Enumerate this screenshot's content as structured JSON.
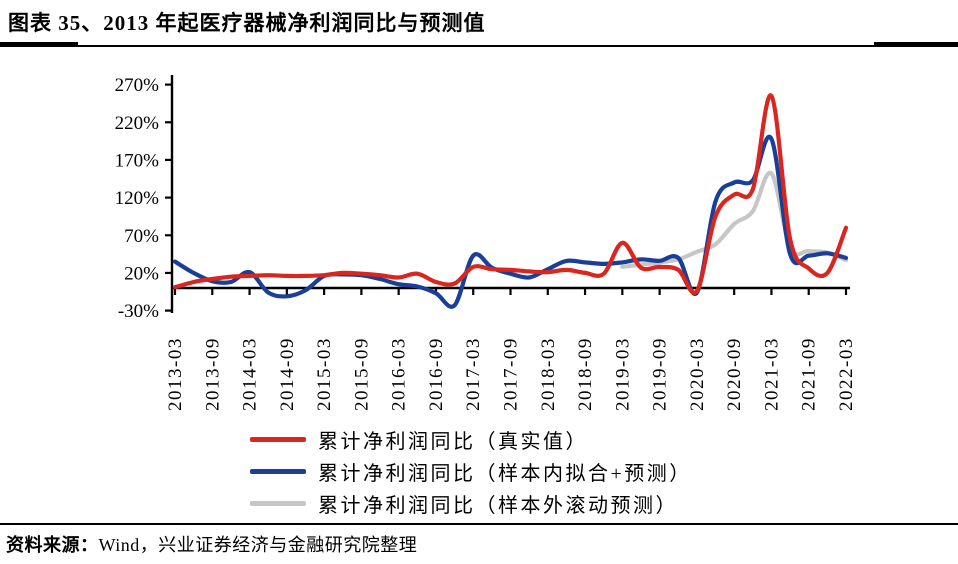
{
  "header": {
    "title": "图表 35、2013 年起医疗器械净利润同比与预测值"
  },
  "footer": {
    "source_label": "资料来源：",
    "source_text": "Wind，兴业证券经济与金融研究院整理"
  },
  "chart_data": {
    "type": "line",
    "title": "图表 35、2013 年起医疗器械净利润同比与预测值",
    "xlabel": "",
    "ylabel": "",
    "y_unit": "%",
    "ylim": [
      -30,
      270
    ],
    "yticks": [
      270,
      220,
      170,
      120,
      70,
      20,
      -30
    ],
    "grid": false,
    "legend_position": "bottom",
    "axis_color": "#000000",
    "x_tick_labels": [
      "2013-03",
      "2013-09",
      "2014-03",
      "2014-09",
      "2015-03",
      "2015-09",
      "2016-03",
      "2016-09",
      "2017-03",
      "2017-09",
      "2018-03",
      "2018-09",
      "2019-03",
      "2019-09",
      "2020-03",
      "2020-09",
      "2021-03",
      "2021-09",
      "2022-03"
    ],
    "x": [
      "2013-03",
      "2013-06",
      "2013-09",
      "2013-12",
      "2014-03",
      "2014-06",
      "2014-09",
      "2014-12",
      "2015-03",
      "2015-06",
      "2015-09",
      "2015-12",
      "2016-03",
      "2016-06",
      "2016-09",
      "2016-12",
      "2017-03",
      "2017-06",
      "2017-09",
      "2017-12",
      "2018-03",
      "2018-06",
      "2018-09",
      "2018-12",
      "2019-03",
      "2019-06",
      "2019-09",
      "2019-12",
      "2020-03",
      "2020-06",
      "2020-09",
      "2020-12",
      "2021-03",
      "2021-06",
      "2021-09",
      "2021-12",
      "2022-03"
    ],
    "series": [
      {
        "name": "累计净利润同比（真实值）",
        "color": "#d9261f",
        "values": [
          1,
          8,
          12,
          15,
          16,
          17,
          16,
          16,
          17,
          20,
          19,
          17,
          14,
          19,
          8,
          6,
          28,
          25,
          24,
          22,
          21,
          24,
          20,
          19,
          60,
          27,
          28,
          24,
          -4,
          95,
          124,
          131,
          255,
          65,
          26,
          20,
          80
        ]
      },
      {
        "name": "累计净利润同比（样本内拟合+预测）",
        "color": "#1a3f97",
        "values": [
          35,
          20,
          9,
          8,
          21,
          -6,
          -11,
          -3,
          16,
          18,
          17,
          12,
          5,
          2,
          -7,
          -23,
          43,
          27,
          19,
          14,
          25,
          36,
          34,
          32,
          34,
          38,
          36,
          40,
          -6,
          115,
          140,
          143,
          198,
          45,
          43,
          46,
          40
        ]
      },
      {
        "name": "累计净利润同比（样本外滚动预测）",
        "color": "#c6c6c6",
        "values": [
          null,
          null,
          null,
          null,
          null,
          null,
          null,
          null,
          null,
          null,
          null,
          null,
          null,
          null,
          null,
          null,
          null,
          null,
          null,
          null,
          null,
          null,
          null,
          null,
          28,
          31,
          34,
          38,
          48,
          58,
          85,
          102,
          152,
          53,
          49,
          47,
          37
        ]
      }
    ]
  }
}
